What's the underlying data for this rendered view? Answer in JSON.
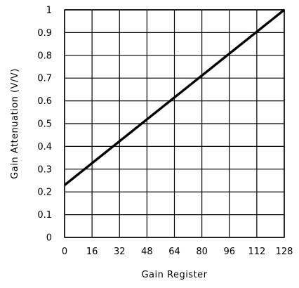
{
  "chart_data": {
    "type": "line",
    "title": "",
    "xlabel": "Gain Register",
    "ylabel": "Gain Attenuation (V/V)",
    "xlim": [
      0,
      128
    ],
    "ylim": [
      0,
      1
    ],
    "xticks": [
      0,
      16,
      32,
      48,
      64,
      80,
      96,
      112,
      128
    ],
    "yticks": [
      0,
      0.1,
      0.2,
      0.3,
      0.4,
      0.5,
      0.6,
      0.7,
      0.8,
      0.9,
      1
    ],
    "xtick_labels": [
      "0",
      "16",
      "32",
      "48",
      "64",
      "80",
      "96",
      "112",
      "128"
    ],
    "ytick_labels": [
      "0",
      "0.1",
      "0.2",
      "0.3",
      "0.4",
      "0.5",
      "0.6",
      "0.7",
      "0.8",
      "0.9",
      "1"
    ],
    "grid": true,
    "legend": "none",
    "series": [
      {
        "x": [
          0,
          128
        ],
        "y": [
          0.23,
          1.0
        ]
      }
    ]
  }
}
